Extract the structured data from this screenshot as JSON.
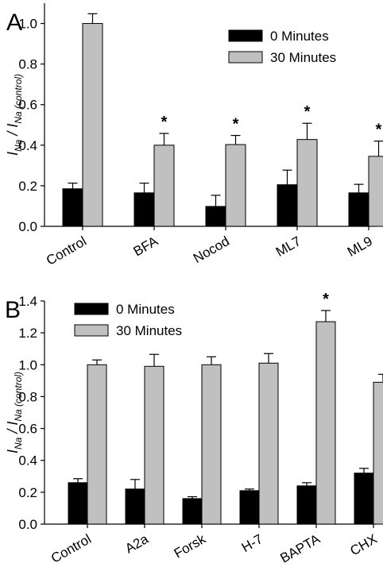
{
  "chart_data": [
    {
      "type": "bar",
      "panel_label": "A",
      "categories": [
        "Control",
        "BFA",
        "Nocod",
        "ML7",
        "ML9"
      ],
      "series": [
        {
          "name": "0 Minutes",
          "color": "#000000",
          "values": [
            0.185,
            0.165,
            0.098,
            0.205,
            0.165
          ],
          "errors": [
            0.028,
            0.048,
            0.055,
            0.072,
            0.042
          ]
        },
        {
          "name": "30 Minutes",
          "color": "#c0c0c0",
          "values": [
            1.0,
            0.4,
            0.403,
            0.428,
            0.345
          ],
          "errors": [
            0.048,
            0.058,
            0.045,
            0.08,
            0.075
          ]
        }
      ],
      "significance": [
        "",
        "*",
        "*",
        "*",
        "*"
      ],
      "ylim": [
        0,
        1.1
      ],
      "yticks": [
        "0.0",
        "0.2",
        "0.4",
        "0.6",
        "0.8",
        "1.0"
      ],
      "ylabel_main": "I",
      "ylabel_sub1": "Na",
      "ylabel_sep": " / I",
      "ylabel_sub2": "Na (control)",
      "legend_position": "top-right",
      "grid": false
    },
    {
      "type": "bar",
      "panel_label": "B",
      "categories": [
        "Control",
        "A2a",
        "Forsk",
        "H-7",
        "BAPTA",
        "CHX"
      ],
      "series": [
        {
          "name": "0 Minutes",
          "color": "#000000",
          "values": [
            0.26,
            0.22,
            0.16,
            0.21,
            0.24,
            0.32
          ],
          "errors": [
            0.025,
            0.06,
            0.012,
            0.01,
            0.02,
            0.03
          ]
        },
        {
          "name": "30 Minutes",
          "color": "#c0c0c0",
          "values": [
            1.0,
            0.99,
            1.0,
            1.01,
            1.27,
            0.89
          ],
          "errors": [
            0.03,
            0.075,
            0.05,
            0.06,
            0.07,
            0.05
          ]
        }
      ],
      "significance": [
        "",
        "",
        "",
        "",
        "*",
        ""
      ],
      "ylim": [
        0,
        1.4
      ],
      "yticks": [
        "0.0",
        "0.2",
        "0.4",
        "0.6",
        "0.8",
        "1.0",
        "1.2",
        "1.4"
      ],
      "ylabel_main": "I",
      "ylabel_sub1": "Na",
      "ylabel_sep": " / I",
      "ylabel_sub2": "Na (control)",
      "legend_position": "top-left",
      "grid": false
    }
  ]
}
